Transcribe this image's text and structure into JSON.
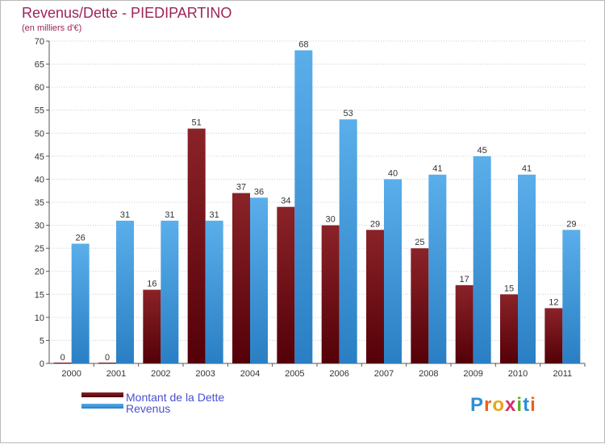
{
  "title": "Revenus/Dette - PIEDIPARTINO",
  "subtitle": "(en milliers d'€)",
  "colors": {
    "dette": "#6b0d12",
    "revenus": "#3a95de",
    "title": "#a0235a",
    "legend_text": "#4a4fd0",
    "grid": "#cccccc"
  },
  "logo": {
    "text": "Proxiti",
    "letters": [
      "P",
      "r",
      "o",
      "x",
      "i",
      "t",
      "i"
    ],
    "letter_colors": [
      "#2e8ed6",
      "#e8621c",
      "#e8a418",
      "#d62e6e",
      "#5bb02e",
      "#2e8ed6",
      "#e8621c"
    ]
  },
  "chart_data": {
    "type": "bar",
    "title": "Revenus/Dette - PIEDIPARTINO",
    "subtitle": "(en milliers d'€)",
    "xlabel": "",
    "ylabel": "",
    "categories": [
      "2000",
      "2001",
      "2002",
      "2003",
      "2004",
      "2005",
      "2006",
      "2007",
      "2008",
      "2009",
      "2010",
      "2011"
    ],
    "series": [
      {
        "name": "Montant de la Dette",
        "values": [
          0,
          0,
          16,
          51,
          37,
          34,
          30,
          29,
          25,
          17,
          15,
          12
        ]
      },
      {
        "name": "Revenus",
        "values": [
          26,
          31,
          31,
          31,
          36,
          68,
          53,
          40,
          41,
          45,
          41,
          29
        ]
      }
    ],
    "ylim": [
      0,
      70
    ],
    "yticks": [
      0,
      5,
      10,
      15,
      20,
      25,
      30,
      35,
      40,
      45,
      50,
      55,
      60,
      65,
      70
    ],
    "grid": true,
    "legend_position": "bottom-left"
  }
}
